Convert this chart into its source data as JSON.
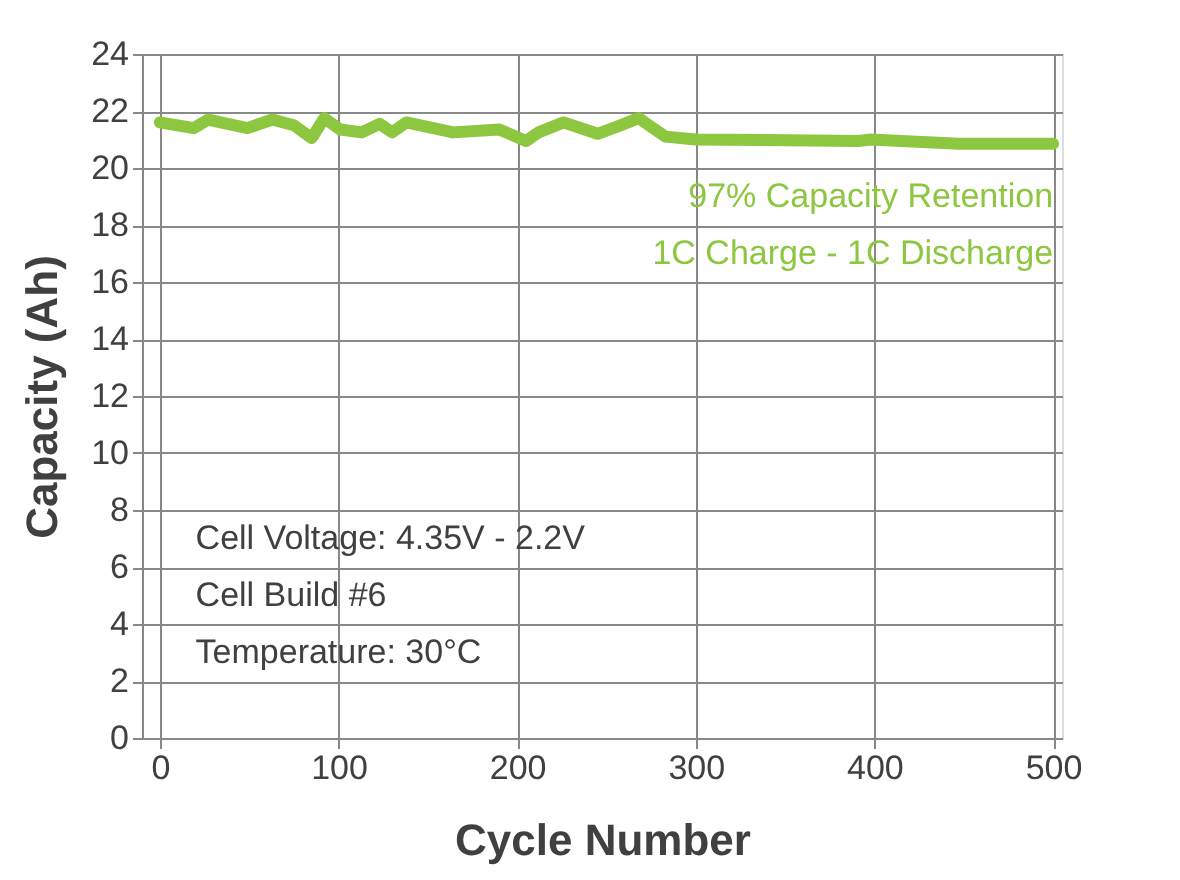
{
  "chart_data": {
    "type": "line",
    "xlabel": "Cycle Number",
    "ylabel": "Capacity (Ah)",
    "x": [
      0,
      19,
      27,
      49,
      63,
      75,
      85,
      92,
      101,
      113,
      123,
      130,
      138,
      157,
      164,
      190,
      205,
      212,
      226,
      245,
      256,
      268,
      283,
      300,
      391,
      398,
      447,
      476,
      500
    ],
    "series": [
      {
        "color": "#8dc63f",
        "values": [
          21.6,
          21.4,
          21.7,
          21.4,
          21.7,
          21.5,
          21.05,
          21.75,
          21.35,
          21.25,
          21.55,
          21.25,
          21.6,
          21.35,
          21.25,
          21.35,
          20.95,
          21.25,
          21.6,
          21.2,
          21.45,
          21.75,
          21.1,
          21.0,
          20.95,
          21.0,
          20.85,
          20.85,
          20.85
        ]
      }
    ],
    "xlim": [
      -10,
      505
    ],
    "xticks": [
      0,
      100,
      200,
      300,
      400,
      500
    ],
    "ylim": [
      0,
      24
    ],
    "yticks": [
      0,
      2,
      4,
      6,
      8,
      10,
      12,
      14,
      16,
      18,
      20,
      22,
      24
    ],
    "grid": true,
    "legend": false,
    "marker": "none",
    "line_style": "solid",
    "annotations": [
      "97% Capacity Retention",
      "1C Charge - 1C Discharge",
      "Cell Voltage: 4.35V - 2.2V",
      "Cell Build #6",
      "Temperature: 30°C"
    ]
  }
}
